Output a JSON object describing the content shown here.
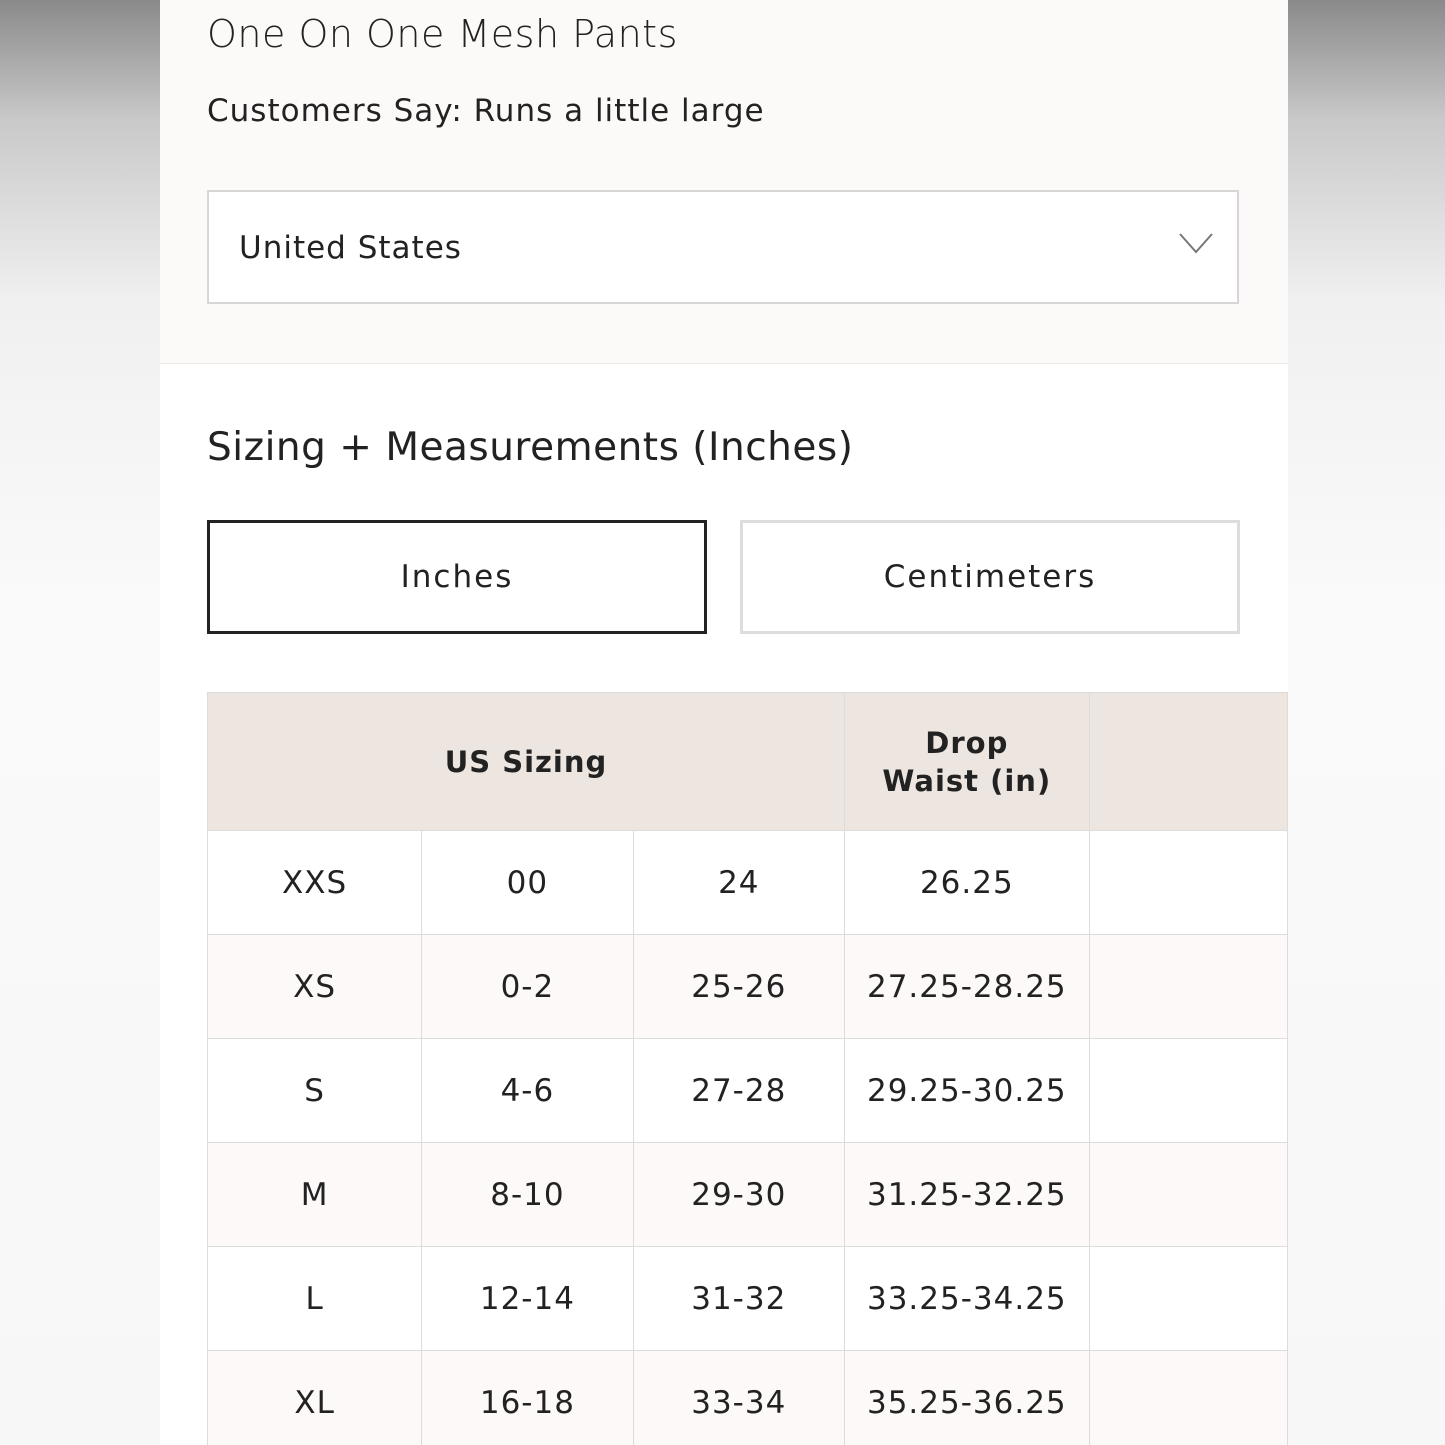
{
  "product": {
    "title": "One On One Mesh Pants",
    "customers_say": "Customers Say: Runs a little large"
  },
  "region_select": {
    "value": "United States",
    "icon": "chevron-down-icon"
  },
  "sizing": {
    "heading": "Sizing + Measurements (Inches)",
    "units": [
      {
        "label": "Inches",
        "selected": true
      },
      {
        "label": "Centimeters",
        "selected": false
      }
    ],
    "table": {
      "headers": [
        "US Sizing",
        "Drop Waist (in)"
      ],
      "rows": [
        [
          "XXS",
          "00",
          "24",
          "26.25"
        ],
        [
          "XS",
          "0-2",
          "25-26",
          "27.25-28.25"
        ],
        [
          "S",
          "4-6",
          "27-28",
          "29.25-30.25"
        ],
        [
          "M",
          "8-10",
          "29-30",
          "31.25-32.25"
        ],
        [
          "L",
          "12-14",
          "31-32",
          "33.25-34.25"
        ],
        [
          "XL",
          "16-18",
          "33-34",
          "35.25-36.25"
        ]
      ]
    }
  }
}
